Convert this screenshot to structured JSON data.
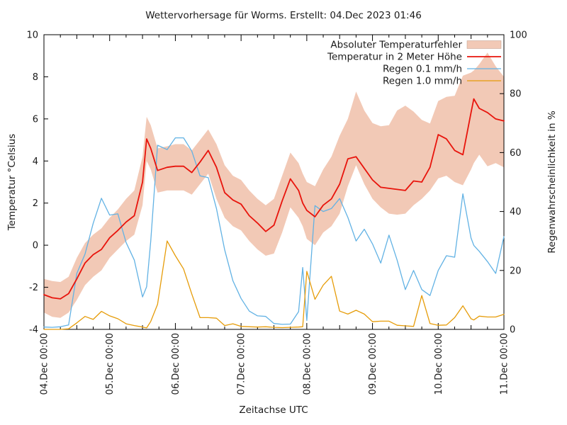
{
  "title": "Wettervorhersage für Worms. Erstellt: 04.Dec 2023 01:46",
  "axes": {
    "x": {
      "label": "Zeitachse UTC"
    },
    "y_left": {
      "label": "Temperatur °Celsius",
      "min": -4,
      "max": 10,
      "tick_step": 2
    },
    "y_right": {
      "label": "Regenwahrscheinlichkeit in %",
      "min": 0,
      "max": 100,
      "tick_step": 20
    }
  },
  "legend": [
    {
      "label": "Absoluter Temperaturfehler",
      "swatch": "box",
      "color": "#f2c9b6"
    },
    {
      "label": "Temperatur in 2 Meter Höhe",
      "swatch": "line",
      "color": "#e8140c"
    },
    {
      "label": "Regen 0.1 mm/h",
      "swatch": "line",
      "color": "#62b2e4"
    },
    {
      "label": "Regen 1.0 mm/h",
      "swatch": "line",
      "color": "#e69c09"
    }
  ],
  "colors": {
    "band": "#f2c9b6",
    "temperature": "#e8140c",
    "rain01": "#62b2e4",
    "rain10": "#e69c09",
    "frame": "#000000",
    "text": "#1a1a1a"
  },
  "chart_data": {
    "type": "line",
    "title": "Wettervorhersage für Worms. Erstellt: 04.Dec 2023 01:46",
    "xlabel": "Zeitachse UTC",
    "ylabel_left": "Temperatur °Celsius",
    "ylabel_right": "Regenwahrscheinlichkeit in %",
    "x_unit": "hours since 04.Dec 2023 00:00 UTC",
    "x_range_hours": [
      0,
      168
    ],
    "ylim_left": [
      -4,
      10
    ],
    "ylim_right": [
      0,
      100
    ],
    "grid": false,
    "legend_position": "top-right-inside",
    "x_major_ticks_hours": [
      0,
      24,
      48,
      72,
      96,
      120,
      144,
      168
    ],
    "x_major_tick_labels": [
      "04.Dec 00:00",
      "05.Dec 00:00",
      "06.Dec 00:00",
      "07.Dec 00:00",
      "08.Dec 00:00",
      "09.Dec 00:00",
      "10.Dec 00:00",
      "11.Dec 00:00"
    ],
    "x_minor_tick_hours": 6,
    "x_hours": [
      0,
      3,
      6,
      9,
      12,
      15,
      18,
      21,
      24,
      27,
      30,
      33,
      36,
      37.5,
      39,
      41.5,
      45,
      48,
      51,
      54,
      57,
      60,
      63,
      66,
      69,
      72,
      75,
      78,
      81,
      84,
      87,
      90,
      93,
      94.5,
      96,
      99,
      102,
      105,
      108,
      111,
      114,
      117,
      120,
      123,
      126,
      129,
      132,
      135,
      138,
      141,
      144,
      147,
      150,
      153,
      156,
      157,
      159,
      162,
      165,
      168
    ],
    "series": [
      {
        "name": "Absoluter Temperaturfehler (band upper)",
        "axis": "left",
        "style": "band-upper",
        "values": [
          -1.6,
          -1.7,
          -1.75,
          -1.5,
          -0.6,
          0.1,
          0.5,
          0.8,
          1.3,
          1.7,
          2.2,
          2.6,
          4.2,
          6.1,
          5.7,
          4.6,
          4.7,
          4.8,
          4.8,
          4.5,
          5.0,
          5.5,
          4.8,
          3.8,
          3.3,
          3.1,
          2.6,
          2.2,
          1.9,
          2.2,
          3.3,
          4.4,
          3.9,
          3.4,
          3.0,
          2.8,
          3.6,
          4.2,
          5.2,
          6.0,
          7.3,
          6.4,
          5.8,
          5.65,
          5.7,
          6.4,
          6.63,
          6.35,
          5.95,
          5.78,
          6.85,
          7.05,
          7.1,
          8.05,
          8.2,
          8.3,
          8.6,
          9.15,
          8.5,
          8.0
        ]
      },
      {
        "name": "Absoluter Temperaturfehler (band lower)",
        "axis": "left",
        "style": "band-lower",
        "values": [
          -3.2,
          -3.4,
          -3.45,
          -3.2,
          -2.6,
          -1.9,
          -1.5,
          -1.2,
          -0.6,
          -0.2,
          0.2,
          0.5,
          1.9,
          4.0,
          3.6,
          2.5,
          2.6,
          2.6,
          2.6,
          2.4,
          2.9,
          3.4,
          2.2,
          1.3,
          0.9,
          0.7,
          0.2,
          -0.2,
          -0.5,
          -0.4,
          0.6,
          1.8,
          1.3,
          0.9,
          0.3,
          0.0,
          0.6,
          0.9,
          1.5,
          2.8,
          3.8,
          2.9,
          2.2,
          1.8,
          1.5,
          1.45,
          1.5,
          1.9,
          2.2,
          2.6,
          3.17,
          3.3,
          3.0,
          2.85,
          3.6,
          3.9,
          4.3,
          3.75,
          3.9,
          3.7
        ]
      },
      {
        "name": "Temperatur in 2 Meter Höhe",
        "axis": "left",
        "style": "line",
        "unit": "°C",
        "values": [
          -2.35,
          -2.5,
          -2.55,
          -2.3,
          -1.6,
          -0.85,
          -0.45,
          -0.2,
          0.35,
          0.7,
          1.1,
          1.4,
          3.0,
          5.05,
          4.6,
          3.55,
          3.7,
          3.75,
          3.75,
          3.45,
          3.95,
          4.5,
          3.7,
          2.5,
          2.15,
          1.95,
          1.4,
          1.05,
          0.65,
          0.95,
          2.1,
          3.15,
          2.6,
          2.0,
          1.65,
          1.35,
          1.9,
          2.2,
          2.9,
          4.1,
          4.2,
          3.65,
          3.1,
          2.75,
          2.7,
          2.65,
          2.6,
          3.05,
          3.0,
          3.7,
          5.25,
          5.05,
          4.5,
          4.3,
          6.3,
          6.95,
          6.5,
          6.3,
          6.0,
          5.9
        ]
      },
      {
        "name": "Regen 0.1 mm/h",
        "axis": "right",
        "style": "line",
        "unit": "%",
        "values": [
          0.8,
          0.7,
          0.9,
          1.5,
          19,
          25.5,
          36,
          44.5,
          38.8,
          39.2,
          29.5,
          23.5,
          11,
          14.5,
          30,
          62.5,
          61,
          65,
          65,
          60.5,
          52.1,
          51.5,
          41,
          27,
          16.5,
          10.5,
          6.2,
          4.6,
          4.4,
          2.0,
          1.7,
          1.8,
          6,
          21,
          3,
          42,
          40,
          41,
          44.4,
          38,
          30,
          34,
          29,
          22.5,
          32,
          23.5,
          13.5,
          20,
          13.5,
          11.5,
          20,
          25,
          24.5,
          46,
          31,
          28.5,
          26.5,
          23,
          19,
          31.5
        ]
      },
      {
        "name": "Regen 1.0 mm/h",
        "axis": "right",
        "style": "line",
        "unit": "%",
        "values": [
          0,
          0,
          0,
          0.2,
          2.2,
          4.4,
          3.4,
          6.1,
          4.6,
          3.6,
          1.9,
          1.3,
          0.8,
          0.5,
          2.7,
          8.5,
          30,
          25,
          20.5,
          12,
          4.0,
          4.0,
          3.8,
          1.3,
          1.9,
          1.0,
          0.9,
          0.8,
          0.9,
          0.7,
          0.6,
          0.7,
          0.8,
          0.9,
          19.7,
          10.2,
          15,
          18,
          6.2,
          5.2,
          6.5,
          5.2,
          2.6,
          2.8,
          2.8,
          1.4,
          1.2,
          1.0,
          11.5,
          2.0,
          1.4,
          1.5,
          4.0,
          8.0,
          3.6,
          3.2,
          4.5,
          4.2,
          4.2,
          5.1
        ]
      }
    ]
  }
}
